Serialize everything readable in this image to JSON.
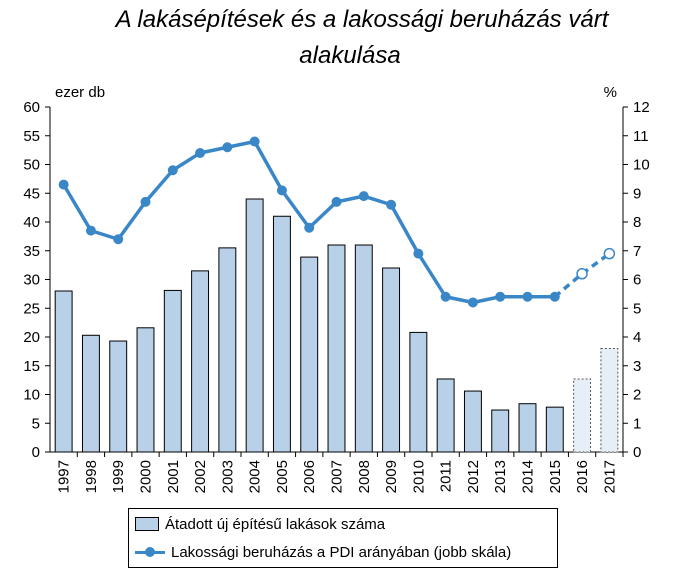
{
  "chart_data": {
    "type": "bar+line",
    "title_line1": "A lakásépítések és a lakossági beruházás várt",
    "title_line2": "alakulása",
    "y_left_unit": "ezer db",
    "y_right_unit": "%",
    "y_left_ticks": [
      "0",
      "5",
      "10",
      "15",
      "20",
      "25",
      "30",
      "35",
      "40",
      "45",
      "50",
      "55",
      "60"
    ],
    "y_right_ticks": [
      "0",
      "1",
      "2",
      "3",
      "4",
      "5",
      "6",
      "7",
      "8",
      "9",
      "10",
      "11",
      "12"
    ],
    "ylim_left": [
      0,
      60
    ],
    "ylim_right": [
      0,
      12
    ],
    "categories": [
      "1997",
      "1998",
      "1999",
      "2000",
      "2001",
      "2002",
      "2003",
      "2004",
      "2005",
      "2006",
      "2007",
      "2008",
      "2009",
      "2010",
      "2011",
      "2012",
      "2013",
      "2014",
      "2015",
      "2016",
      "2017"
    ],
    "bars": {
      "name": "Átadott új építésű lakások száma",
      "values": [
        28,
        20.3,
        19.3,
        21.6,
        28.1,
        31.5,
        35.5,
        44,
        41,
        33.9,
        36,
        36,
        32,
        20.8,
        12.7,
        10.6,
        7.3,
        8.4,
        7.8,
        12.7,
        18
      ],
      "forecast_from_index": 19,
      "color": "#b8d1e8",
      "forecast_color": "#e6eef7"
    },
    "line": {
      "name": "Lakossági beruházás a PDI arányában (jobb skála)",
      "values": [
        9.3,
        7.7,
        7.4,
        8.7,
        9.8,
        10.4,
        10.6,
        10.8,
        9.1,
        7.8,
        8.7,
        8.9,
        8.6,
        6.9,
        5.4,
        5.2,
        5.4,
        5.4,
        5.4,
        6.2,
        6.9
      ],
      "forecast_from_index": 19,
      "color": "#3a87c8"
    },
    "grid": false
  }
}
